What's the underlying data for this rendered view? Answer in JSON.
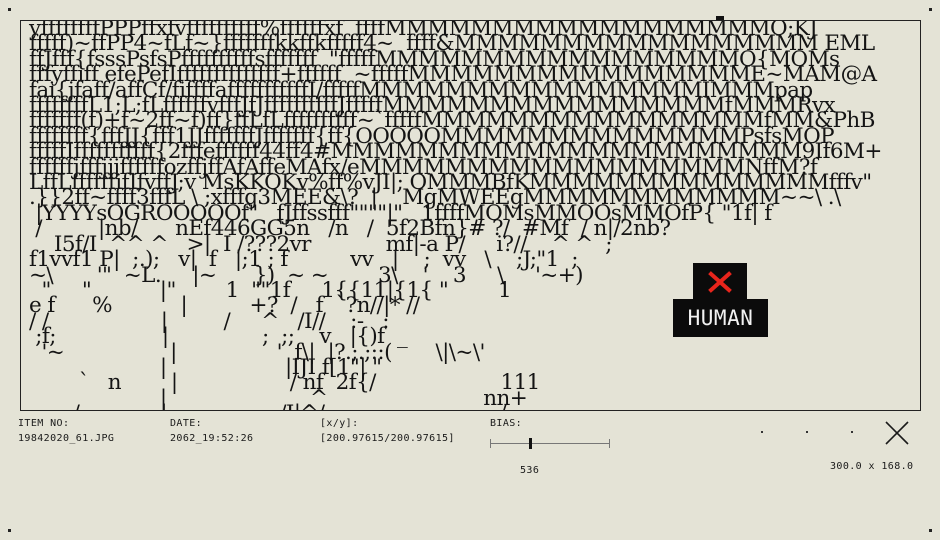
{
  "viewport": {
    "ascii_lines": [
      "yffffffffPPPffxfvffffffffff%ffffffxf  ffffMMMMMMMMMMMMMMMMMMO;KJ",
      "fffff)~ffPP4~fLf~}fffffffkkffkfffff4~  ffff&MMMMMMMMMMMMMMMMM EML",
      "ffJfff{fsssPsfsPffffffffffsfffffff  \"fffffMMMMMMMMMMMMMMMMMO{MOMs",
      "fffyffiff efePefIffffffffffffff+ffffff  ~fffffMMMMMMMMMMMMMMMME~MAM@A",
      "fai{jfaff/affCf/fiffffafffffffffffI/fffffMMMMMMMMMMMMMMMMIMMMpap",
      "ffffffffL1;L;fLffffffvfffJfJffffffffffJfffffMMMMMMMMMMMMMMMMfMMMRvx",
      "fffffff(f)+f~2ff~f)ff}ffLfLffffffffff~`fffffMMMMMMMMMMMMMMMMfMM&PhB",
      "ffffffff{fffJJ{fff1JJfffffffJfffffff{ff{OOOOOMMMMMMMMMMMMMMPsfsMOP",
      "fffffIfffffffffff{2fffeffffff44ff4#MMMMMMMMMMMMMMMMMMMMMM9If6M+",
      "ffffffjfffjjjffffffozffjffAfAffeMAfx/eMMMMMMMMMMMMMMMMMMNffM?f",
      "LffLffffffifIfvffJ;v MsKKOKv%ff%vJI|; OMMMBfKMMMMMMMMMMMMMMfffv\"",
      ".}}2ff~ffff3fffL \\ ;xfffg3MEE&\\?  |    MgMWEEgMMMMMMMMMMMM~~\\ .\\",
      " |YYYYsOGROOOOOf\"   fJffssfff\"\"\"\"|\"   1ffffMOMsMMOOsMMOfP{ \"1f| f",
      " /         |nb/      nEf446GG5n   /n   /  5f2Bfn}# ?/  #Mf  / n|/2nb?",
      "    I5f/I  ^^ ^   >|  I /???2vr            mf|-a P/     i?//    ^ ^  ;",
      "f1vvf1 P|  ;.);   v|  f   |;1 ; f          vv   |    ;  vv   \\    ;J;\"1  ;",
      "~\\       '\"  ~L.     |~      })  ~ ~        3\\    '    3     \\     '~+)",
      "  \"     \"           |\"        1  \"\"1f     1{{11|{1{ \"        1",
      "e f      %           |          +?  /   f  `?n//|* //",
      "/ /                  |         /     ^   /I//    :-   :",
      " ;f;                 |               ;  ;;    v   |{)f  _",
      "  '~                 |                '  f\\|  |?.;.;::(       \\|\\~\\'",
      "                     |                   |IJI f[1\"| \"",
      "        `   n        |                  / nf  2f{/                    111",
      "                     |                       ^                         nn+",
      "       /             |                  /I|^/-                           /"
    ]
  },
  "human_tag": {
    "label": "HUMAN",
    "x_icon": "close-x-icon",
    "accent": "#e8251c"
  },
  "meta": {
    "item_no_label": "ITEM NO:",
    "item_no_value": "19842020_61.JPG",
    "date_label": "DATE:",
    "date_value": "2062_19:52:26",
    "coords_label": "[x/y]:",
    "coords_value": "[200.97615/200.97615]",
    "bias_label": "BIAS:",
    "bias_value": "536",
    "bias_fraction": 0.33,
    "dimensions": "300.0 x 168.0"
  },
  "controls": {
    "close_icon": "close-icon"
  }
}
